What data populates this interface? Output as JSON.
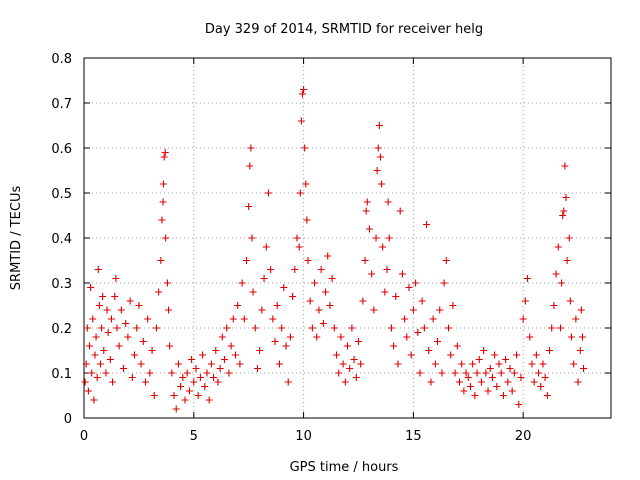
{
  "chart_data": {
    "type": "scatter",
    "title": "Day 329 of 2014, SRMTID for receiver helg",
    "xlabel": "GPS time / hours",
    "ylabel": "SRMTID / TECUs",
    "xlim": [
      0,
      24
    ],
    "ylim": [
      0,
      0.8
    ],
    "xticks": [
      0,
      5,
      10,
      15,
      20
    ],
    "xtick_labels": [
      "0",
      "5",
      "10",
      "15",
      "20"
    ],
    "yticks": [
      0,
      0.1,
      0.2,
      0.3,
      0.4,
      0.5,
      0.6,
      0.7,
      0.8
    ],
    "ytick_labels": [
      "0",
      "0.1",
      "0.2",
      "0.3",
      "0.4",
      "0.5",
      "0.6",
      "0.7",
      "0.8"
    ],
    "grid": true,
    "marker": "plus",
    "color": "#e00000",
    "series": [
      {
        "name": "SRMTID",
        "points": [
          [
            0.05,
            0.08
          ],
          [
            0.1,
            0.12
          ],
          [
            0.15,
            0.2
          ],
          [
            0.2,
            0.06
          ],
          [
            0.25,
            0.16
          ],
          [
            0.3,
            0.29
          ],
          [
            0.35,
            0.1
          ],
          [
            0.4,
            0.22
          ],
          [
            0.45,
            0.04
          ],
          [
            0.5,
            0.14
          ],
          [
            0.55,
            0.18
          ],
          [
            0.6,
            0.09
          ],
          [
            0.65,
            0.33
          ],
          [
            0.7,
            0.25
          ],
          [
            0.75,
            0.12
          ],
          [
            0.8,
            0.2
          ],
          [
            0.85,
            0.27
          ],
          [
            0.9,
            0.15
          ],
          [
            1.0,
            0.1
          ],
          [
            1.05,
            0.24
          ],
          [
            1.1,
            0.19
          ],
          [
            1.2,
            0.13
          ],
          [
            1.25,
            0.22
          ],
          [
            1.3,
            0.08
          ],
          [
            1.4,
            0.27
          ],
          [
            1.45,
            0.31
          ],
          [
            1.5,
            0.2
          ],
          [
            1.6,
            0.16
          ],
          [
            1.7,
            0.24
          ],
          [
            1.8,
            0.11
          ],
          [
            1.9,
            0.21
          ],
          [
            2.0,
            0.18
          ],
          [
            2.1,
            0.26
          ],
          [
            2.2,
            0.09
          ],
          [
            2.3,
            0.14
          ],
          [
            2.4,
            0.2
          ],
          [
            2.5,
            0.25
          ],
          [
            2.6,
            0.12
          ],
          [
            2.7,
            0.17
          ],
          [
            2.8,
            0.08
          ],
          [
            2.9,
            0.22
          ],
          [
            3.0,
            0.1
          ],
          [
            3.1,
            0.15
          ],
          [
            3.2,
            0.05
          ],
          [
            3.3,
            0.2
          ],
          [
            3.4,
            0.28
          ],
          [
            3.5,
            0.35
          ],
          [
            3.55,
            0.44
          ],
          [
            3.6,
            0.48
          ],
          [
            3.62,
            0.52
          ],
          [
            3.65,
            0.58
          ],
          [
            3.7,
            0.59
          ],
          [
            3.72,
            0.4
          ],
          [
            3.8,
            0.3
          ],
          [
            3.85,
            0.24
          ],
          [
            3.9,
            0.16
          ],
          [
            4.0,
            0.1
          ],
          [
            4.1,
            0.05
          ],
          [
            4.2,
            0.02
          ],
          [
            4.3,
            0.12
          ],
          [
            4.4,
            0.07
          ],
          [
            4.5,
            0.09
          ],
          [
            4.6,
            0.04
          ],
          [
            4.7,
            0.1
          ],
          [
            4.8,
            0.06
          ],
          [
            4.9,
            0.13
          ],
          [
            5.0,
            0.08
          ],
          [
            5.1,
            0.11
          ],
          [
            5.2,
            0.05
          ],
          [
            5.3,
            0.09
          ],
          [
            5.4,
            0.14
          ],
          [
            5.5,
            0.07
          ],
          [
            5.6,
            0.1
          ],
          [
            5.7,
            0.04
          ],
          [
            5.8,
            0.12
          ],
          [
            5.9,
            0.09
          ],
          [
            6.0,
            0.15
          ],
          [
            6.1,
            0.08
          ],
          [
            6.2,
            0.11
          ],
          [
            6.3,
            0.18
          ],
          [
            6.4,
            0.13
          ],
          [
            6.5,
            0.2
          ],
          [
            6.6,
            0.1
          ],
          [
            6.7,
            0.16
          ],
          [
            6.8,
            0.22
          ],
          [
            6.9,
            0.14
          ],
          [
            7.0,
            0.25
          ],
          [
            7.1,
            0.12
          ],
          [
            7.2,
            0.3
          ],
          [
            7.3,
            0.22
          ],
          [
            7.4,
            0.35
          ],
          [
            7.5,
            0.47
          ],
          [
            7.55,
            0.56
          ],
          [
            7.6,
            0.6
          ],
          [
            7.65,
            0.4
          ],
          [
            7.7,
            0.28
          ],
          [
            7.8,
            0.2
          ],
          [
            7.9,
            0.11
          ],
          [
            8.0,
            0.15
          ],
          [
            8.1,
            0.24
          ],
          [
            8.2,
            0.31
          ],
          [
            8.3,
            0.38
          ],
          [
            8.4,
            0.5
          ],
          [
            8.5,
            0.33
          ],
          [
            8.6,
            0.22
          ],
          [
            8.7,
            0.17
          ],
          [
            8.8,
            0.25
          ],
          [
            8.9,
            0.12
          ],
          [
            9.0,
            0.2
          ],
          [
            9.1,
            0.29
          ],
          [
            9.2,
            0.16
          ],
          [
            9.3,
            0.08
          ],
          [
            9.4,
            0.18
          ],
          [
            9.5,
            0.27
          ],
          [
            9.6,
            0.33
          ],
          [
            9.7,
            0.4
          ],
          [
            9.8,
            0.38
          ],
          [
            9.85,
            0.5
          ],
          [
            9.9,
            0.66
          ],
          [
            9.95,
            0.72
          ],
          [
            10.0,
            0.73
          ],
          [
            10.05,
            0.6
          ],
          [
            10.1,
            0.52
          ],
          [
            10.15,
            0.44
          ],
          [
            10.2,
            0.35
          ],
          [
            10.3,
            0.26
          ],
          [
            10.4,
            0.2
          ],
          [
            10.5,
            0.3
          ],
          [
            10.6,
            0.18
          ],
          [
            10.7,
            0.24
          ],
          [
            10.8,
            0.33
          ],
          [
            10.9,
            0.21
          ],
          [
            11.0,
            0.28
          ],
          [
            11.1,
            0.36
          ],
          [
            11.2,
            0.25
          ],
          [
            11.3,
            0.31
          ],
          [
            11.4,
            0.2
          ],
          [
            11.5,
            0.14
          ],
          [
            11.6,
            0.1
          ],
          [
            11.7,
            0.18
          ],
          [
            11.8,
            0.12
          ],
          [
            11.9,
            0.08
          ],
          [
            12.0,
            0.16
          ],
          [
            12.1,
            0.11
          ],
          [
            12.2,
            0.2
          ],
          [
            12.3,
            0.13
          ],
          [
            12.4,
            0.09
          ],
          [
            12.5,
            0.17
          ],
          [
            12.6,
            0.12
          ],
          [
            12.7,
            0.26
          ],
          [
            12.8,
            0.35
          ],
          [
            12.85,
            0.46
          ],
          [
            12.9,
            0.48
          ],
          [
            13.0,
            0.42
          ],
          [
            13.1,
            0.32
          ],
          [
            13.2,
            0.24
          ],
          [
            13.3,
            0.4
          ],
          [
            13.35,
            0.55
          ],
          [
            13.4,
            0.6
          ],
          [
            13.45,
            0.65
          ],
          [
            13.5,
            0.58
          ],
          [
            13.55,
            0.52
          ],
          [
            13.6,
            0.38
          ],
          [
            13.7,
            0.28
          ],
          [
            13.8,
            0.33
          ],
          [
            13.85,
            0.48
          ],
          [
            13.9,
            0.4
          ],
          [
            14.0,
            0.2
          ],
          [
            14.1,
            0.16
          ],
          [
            14.2,
            0.27
          ],
          [
            14.3,
            0.12
          ],
          [
            14.4,
            0.46
          ],
          [
            14.5,
            0.32
          ],
          [
            14.6,
            0.22
          ],
          [
            14.7,
            0.18
          ],
          [
            14.8,
            0.29
          ],
          [
            14.9,
            0.14
          ],
          [
            15.0,
            0.24
          ],
          [
            15.1,
            0.3
          ],
          [
            15.2,
            0.19
          ],
          [
            15.3,
            0.1
          ],
          [
            15.4,
            0.26
          ],
          [
            15.5,
            0.2
          ],
          [
            15.6,
            0.43
          ],
          [
            15.7,
            0.15
          ],
          [
            15.8,
            0.08
          ],
          [
            15.9,
            0.22
          ],
          [
            16.0,
            0.12
          ],
          [
            16.1,
            0.17
          ],
          [
            16.2,
            0.24
          ],
          [
            16.3,
            0.1
          ],
          [
            16.4,
            0.3
          ],
          [
            16.5,
            0.35
          ],
          [
            16.6,
            0.2
          ],
          [
            16.7,
            0.14
          ],
          [
            16.8,
            0.25
          ],
          [
            16.9,
            0.1
          ],
          [
            17.0,
            0.16
          ],
          [
            17.1,
            0.08
          ],
          [
            17.2,
            0.12
          ],
          [
            17.3,
            0.06
          ],
          [
            17.4,
            0.1
          ],
          [
            17.5,
            0.09
          ],
          [
            17.6,
            0.07
          ],
          [
            17.7,
            0.12
          ],
          [
            17.8,
            0.05
          ],
          [
            17.9,
            0.1
          ],
          [
            18.0,
            0.13
          ],
          [
            18.1,
            0.08
          ],
          [
            18.2,
            0.15
          ],
          [
            18.3,
            0.1
          ],
          [
            18.4,
            0.06
          ],
          [
            18.5,
            0.11
          ],
          [
            18.6,
            0.09
          ],
          [
            18.7,
            0.14
          ],
          [
            18.8,
            0.07
          ],
          [
            18.9,
            0.12
          ],
          [
            19.0,
            0.1
          ],
          [
            19.1,
            0.05
          ],
          [
            19.2,
            0.13
          ],
          [
            19.3,
            0.08
          ],
          [
            19.4,
            0.11
          ],
          [
            19.5,
            0.06
          ],
          [
            19.6,
            0.1
          ],
          [
            19.7,
            0.14
          ],
          [
            19.8,
            0.03
          ],
          [
            19.9,
            0.09
          ],
          [
            20.0,
            0.22
          ],
          [
            20.1,
            0.26
          ],
          [
            20.2,
            0.31
          ],
          [
            20.3,
            0.18
          ],
          [
            20.4,
            0.12
          ],
          [
            20.5,
            0.08
          ],
          [
            20.6,
            0.14
          ],
          [
            20.7,
            0.1
          ],
          [
            20.8,
            0.07
          ],
          [
            20.9,
            0.12
          ],
          [
            21.0,
            0.09
          ],
          [
            21.1,
            0.05
          ],
          [
            21.2,
            0.15
          ],
          [
            21.3,
            0.2
          ],
          [
            21.4,
            0.25
          ],
          [
            21.5,
            0.32
          ],
          [
            21.6,
            0.38
          ],
          [
            21.7,
            0.2
          ],
          [
            21.75,
            0.3
          ],
          [
            21.8,
            0.45
          ],
          [
            21.85,
            0.46
          ],
          [
            21.9,
            0.56
          ],
          [
            21.95,
            0.49
          ],
          [
            22.0,
            0.35
          ],
          [
            22.1,
            0.4
          ],
          [
            22.15,
            0.26
          ],
          [
            22.2,
            0.18
          ],
          [
            22.3,
            0.12
          ],
          [
            22.4,
            0.22
          ],
          [
            22.5,
            0.08
          ],
          [
            22.6,
            0.15
          ],
          [
            22.65,
            0.24
          ],
          [
            22.7,
            0.18
          ],
          [
            22.75,
            0.11
          ]
        ]
      }
    ]
  }
}
